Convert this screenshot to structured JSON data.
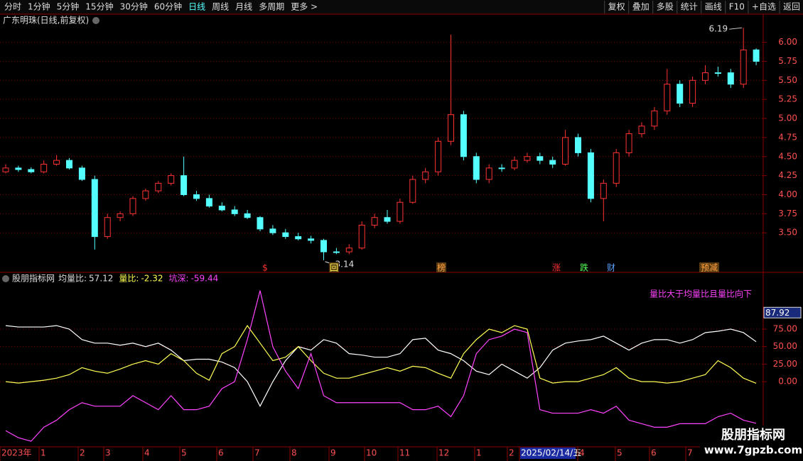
{
  "toolbar": {
    "left": [
      "分时",
      "1分钟",
      "5分钟",
      "15分钟",
      "30分钟",
      "60分钟",
      "日线",
      "周线",
      "月线",
      "多周期",
      "更多 >"
    ],
    "right": [
      "复权",
      "叠加",
      "多股",
      "统计",
      "画线",
      "F10",
      "+自选",
      "返回"
    ]
  },
  "chart_data": [
    {
      "type": "candlestick",
      "title": "广东明珠(日线,前复权)",
      "open": [
        4.3,
        4.35,
        4.33,
        4.3,
        4.4,
        4.45,
        4.35,
        4.2,
        3.45,
        3.7,
        3.75,
        3.95,
        4.05,
        4.15,
        4.25,
        4.0,
        3.95,
        3.85,
        3.8,
        3.75,
        3.7,
        3.55,
        3.5,
        3.45,
        3.42,
        3.4,
        3.25,
        3.25,
        3.3,
        3.6,
        3.7,
        3.65,
        3.9,
        4.2,
        4.3,
        4.7,
        5.05,
        4.5,
        4.2,
        4.35,
        4.35,
        4.45,
        4.5,
        4.45,
        4.4,
        4.75,
        4.55,
        3.95,
        4.15,
        4.55,
        4.8,
        4.9,
        5.1,
        5.45,
        5.2,
        5.5,
        5.6,
        5.6,
        5.45,
        5.9
      ],
      "high": [
        4.4,
        4.38,
        4.36,
        4.45,
        4.52,
        4.48,
        4.38,
        4.25,
        3.75,
        3.78,
        3.98,
        4.08,
        4.18,
        4.28,
        4.5,
        4.05,
        4.0,
        3.9,
        3.85,
        3.8,
        3.72,
        3.6,
        3.55,
        3.5,
        3.46,
        3.42,
        3.3,
        3.35,
        3.65,
        3.75,
        3.8,
        3.95,
        4.25,
        4.35,
        4.75,
        6.1,
        5.1,
        4.55,
        4.4,
        4.4,
        4.5,
        4.55,
        4.55,
        4.5,
        4.85,
        4.8,
        4.6,
        4.2,
        4.6,
        4.85,
        4.95,
        5.15,
        5.65,
        5.5,
        5.55,
        5.7,
        5.68,
        5.65,
        6.19,
        5.92
      ],
      "low": [
        4.28,
        4.3,
        4.28,
        4.28,
        4.38,
        4.33,
        4.18,
        3.28,
        3.42,
        3.65,
        3.72,
        3.92,
        4.02,
        4.12,
        3.98,
        3.92,
        3.83,
        3.78,
        3.72,
        3.68,
        3.52,
        3.47,
        3.42,
        3.4,
        3.36,
        3.14,
        3.22,
        3.22,
        3.28,
        3.56,
        3.62,
        3.62,
        3.88,
        4.15,
        4.25,
        4.65,
        4.45,
        4.15,
        4.15,
        4.3,
        4.32,
        4.42,
        4.4,
        4.35,
        4.38,
        4.5,
        3.9,
        3.65,
        4.1,
        4.5,
        4.75,
        4.85,
        5.05,
        5.15,
        5.15,
        5.45,
        5.55,
        5.4,
        5.4,
        5.7
      ],
      "close": [
        4.35,
        4.33,
        4.3,
        4.4,
        4.45,
        4.35,
        4.2,
        3.45,
        3.7,
        3.75,
        3.95,
        4.05,
        4.15,
        4.25,
        4.0,
        3.95,
        3.85,
        3.8,
        3.75,
        3.7,
        3.55,
        3.5,
        3.45,
        3.42,
        3.4,
        3.25,
        3.25,
        3.3,
        3.6,
        3.7,
        3.65,
        3.9,
        4.2,
        4.3,
        4.7,
        5.05,
        4.5,
        4.2,
        4.35,
        4.35,
        4.45,
        4.5,
        4.45,
        4.4,
        4.75,
        4.55,
        3.95,
        4.15,
        4.55,
        4.8,
        4.9,
        5.1,
        5.45,
        5.2,
        5.5,
        5.6,
        5.6,
        5.45,
        5.9,
        5.75
      ],
      "up_color": "#ff3232",
      "down_color": "#54ffff",
      "ylim": [
        2.99,
        6.35
      ],
      "yticks": [
        {
          "value": 3.5,
          "label": "3.50"
        },
        {
          "value": 3.75,
          "label": "3.75"
        },
        {
          "value": 4,
          "label": "4.00"
        },
        {
          "value": 4.25,
          "label": "4.25"
        },
        {
          "value": 4.5,
          "label": "4.50"
        },
        {
          "value": 4.75,
          "label": "4.75"
        },
        {
          "value": 5,
          "label": "5.00"
        },
        {
          "value": 5.25,
          "label": "5.25"
        },
        {
          "value": 5.5,
          "label": "5.50"
        },
        {
          "value": 5.75,
          "label": "5.75"
        },
        {
          "value": 6,
          "label": "6.00"
        }
      ],
      "grid": true,
      "events": [
        "$",
        "回",
        "榜",
        "涨",
        "跌",
        "财",
        "预减"
      ]
    },
    {
      "type": "line",
      "title": "股朋指标网",
      "series": [
        {
          "name": "均量比:",
          "current": 57.12,
          "color": "#ffffff",
          "values": [
            80,
            78,
            78,
            78,
            80,
            75,
            60,
            55,
            55,
            52,
            55,
            50,
            55,
            45,
            30,
            32,
            32,
            28,
            20,
            0,
            -35,
            0,
            30,
            50,
            45,
            60,
            55,
            40,
            38,
            35,
            35,
            40,
            60,
            62,
            45,
            40,
            30,
            15,
            10,
            25,
            15,
            5,
            20,
            45,
            55,
            58,
            60,
            65,
            55,
            45,
            55,
            60,
            60,
            55,
            60,
            70,
            72,
            75,
            70,
            57
          ]
        },
        {
          "name": "量比:",
          "current": -2.32,
          "color": "#ffff54",
          "values": [
            0,
            -2,
            0,
            2,
            5,
            10,
            20,
            15,
            12,
            18,
            25,
            30,
            25,
            40,
            30,
            12,
            2,
            40,
            50,
            80,
            55,
            30,
            35,
            50,
            30,
            12,
            5,
            5,
            10,
            15,
            20,
            15,
            22,
            20,
            12,
            5,
            40,
            60,
            75,
            70,
            80,
            75,
            5,
            -2,
            0,
            0,
            5,
            10,
            20,
            5,
            0,
            0,
            -2,
            0,
            5,
            10,
            30,
            20,
            5,
            -2.32
          ]
        },
        {
          "name": "坑深:",
          "current": -59.44,
          "color": "#ff44ff",
          "values": [
            -70,
            -80,
            -85,
            -65,
            -55,
            -40,
            -30,
            -35,
            -35,
            -35,
            -20,
            -30,
            -40,
            -20,
            -40,
            -40,
            -35,
            -10,
            0,
            60,
            130,
            50,
            15,
            -10,
            40,
            -20,
            -30,
            -30,
            -30,
            -30,
            -30,
            -30,
            -40,
            -40,
            -35,
            -50,
            -20,
            40,
            60,
            65,
            75,
            70,
            -40,
            -45,
            -45,
            -45,
            -40,
            -45,
            -35,
            -55,
            -60,
            -65,
            -65,
            -60,
            -60,
            -60,
            -50,
            -45,
            -55,
            -59.44
          ]
        }
      ],
      "annotation": "量比大于均量比且量比向下",
      "cursor_value": 87.92,
      "ylim": [
        -93,
        154
      ],
      "yticks": [
        {
          "value": 0,
          "label": "0.00"
        },
        {
          "value": 25,
          "label": "25.00"
        },
        {
          "value": 50,
          "label": "50.00"
        },
        {
          "value": 75,
          "label": "75.00"
        }
      ],
      "grid": true,
      "x_labels": [
        "2023年",
        "1",
        "2",
        "3",
        "4",
        "5",
        "6",
        "7",
        "8",
        "9",
        "10",
        "11",
        "12",
        "1",
        "2",
        "2025/02/14/五",
        "4",
        "5",
        "6",
        "7"
      ]
    }
  ],
  "watermark": {
    "name": "股朋指标网",
    "url": "www.7gpzb.com"
  }
}
